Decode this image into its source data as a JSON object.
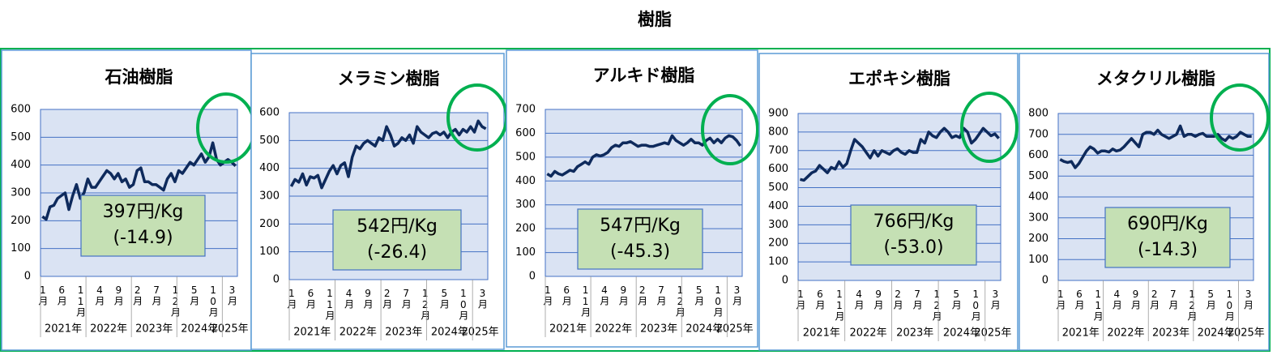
{
  "title": "樹脂",
  "chart_data": [
    {
      "type": "line",
      "title": "石油樹脂",
      "color": "#0e2a5c",
      "categories": [
        "1月",
        null,
        null,
        null,
        null,
        "6月",
        null,
        null,
        null,
        null,
        "11月",
        null,
        null,
        null,
        null,
        "4月",
        null,
        null,
        null,
        null,
        "9月",
        null,
        null,
        null,
        null,
        "2月",
        null,
        null,
        null,
        null,
        "7月",
        null,
        null,
        null,
        null,
        "12月",
        null,
        null,
        null,
        null,
        "5月",
        null,
        null,
        null,
        null,
        "10月",
        null,
        null,
        null,
        null,
        "3月",
        null
      ],
      "x_groups": [
        "2021年",
        "2022年",
        "2023年",
        "2024年",
        "2025年"
      ],
      "values": [
        215,
        205,
        250,
        255,
        280,
        290,
        300,
        240,
        290,
        330,
        280,
        300,
        350,
        320,
        320,
        340,
        360,
        380,
        370,
        350,
        370,
        340,
        350,
        320,
        330,
        380,
        390,
        340,
        340,
        330,
        330,
        320,
        310,
        350,
        370,
        340,
        380,
        370,
        390,
        410,
        400,
        420,
        440,
        410,
        430,
        480,
        420,
        400,
        410,
        420,
        410,
        397
      ],
      "ylim": [
        0,
        600
      ],
      "yticks": [
        0,
        100,
        200,
        300,
        400,
        500,
        600
      ],
      "grid": true,
      "annotation": [
        "397円/Kg",
        "(-14.9)"
      ]
    },
    {
      "type": "line",
      "title": "メラミン樹脂",
      "color": "#0e2a5c",
      "categories": [
        "1月",
        null,
        null,
        null,
        null,
        "6月",
        null,
        null,
        null,
        null,
        "11月",
        null,
        null,
        null,
        null,
        "4月",
        null,
        null,
        null,
        null,
        "9月",
        null,
        null,
        null,
        null,
        "2月",
        null,
        null,
        null,
        null,
        "7月",
        null,
        null,
        null,
        null,
        "12月",
        null,
        null,
        null,
        null,
        "5月",
        null,
        null,
        null,
        null,
        "10月",
        null,
        null,
        null,
        null,
        "3月",
        null
      ],
      "x_groups": [
        "2021年",
        "2022年",
        "2023年",
        "2024年",
        "2025年"
      ],
      "values": [
        335,
        360,
        350,
        380,
        340,
        370,
        365,
        375,
        330,
        360,
        390,
        410,
        380,
        410,
        420,
        370,
        440,
        480,
        470,
        490,
        500,
        490,
        480,
        510,
        500,
        550,
        520,
        480,
        490,
        510,
        500,
        520,
        490,
        550,
        530,
        520,
        510,
        525,
        530,
        520,
        530,
        510,
        530,
        540,
        520,
        540,
        530,
        550,
        530,
        570,
        550,
        542
      ],
      "ylim": [
        0,
        600
      ],
      "yticks": [
        0,
        100,
        200,
        300,
        400,
        500,
        600
      ],
      "grid": true,
      "annotation": [
        "542円/Kg",
        "(-26.4)"
      ]
    },
    {
      "type": "line",
      "title": "アルキド樹脂",
      "color": "#0e2a5c",
      "categories": [
        "1月",
        null,
        null,
        null,
        null,
        "6月",
        null,
        null,
        null,
        null,
        "11月",
        null,
        null,
        null,
        null,
        "4月",
        null,
        null,
        null,
        null,
        "9月",
        null,
        null,
        null,
        null,
        "2月",
        null,
        null,
        null,
        null,
        "7月",
        null,
        null,
        null,
        null,
        "12月",
        null,
        null,
        null,
        null,
        "5月",
        null,
        null,
        null,
        null,
        "10月",
        null,
        null,
        null,
        null,
        "3月",
        null
      ],
      "x_groups": [
        "2021年",
        "2022年",
        "2023年",
        "2024年",
        "2025年"
      ],
      "values": [
        430,
        420,
        440,
        430,
        425,
        435,
        445,
        440,
        460,
        470,
        480,
        470,
        500,
        510,
        505,
        510,
        520,
        540,
        550,
        545,
        560,
        560,
        565,
        555,
        545,
        550,
        550,
        545,
        545,
        550,
        555,
        560,
        555,
        590,
        570,
        560,
        550,
        560,
        575,
        560,
        560,
        550,
        570,
        580,
        560,
        575,
        560,
        580,
        590,
        585,
        570,
        547
      ],
      "ylim": [
        0,
        700
      ],
      "yticks": [
        0,
        100,
        200,
        300,
        400,
        500,
        600,
        700
      ],
      "grid": true,
      "annotation": [
        "547円/Kg",
        "(-45.3)"
      ]
    },
    {
      "type": "line",
      "title": "エポキシ樹脂",
      "color": "#0e2a5c",
      "categories": [
        "1月",
        null,
        null,
        null,
        null,
        "6月",
        null,
        null,
        null,
        null,
        "11月",
        null,
        null,
        null,
        null,
        "4月",
        null,
        null,
        null,
        null,
        "9月",
        null,
        null,
        null,
        null,
        "2月",
        null,
        null,
        null,
        null,
        "7月",
        null,
        null,
        null,
        null,
        "12月",
        null,
        null,
        null,
        null,
        "5月",
        null,
        null,
        null,
        null,
        "10月",
        null,
        null,
        null,
        null,
        "3月",
        null
      ],
      "x_groups": [
        "2021年",
        "2022年",
        "2023年",
        "2024年",
        "2025年"
      ],
      "values": [
        545,
        540,
        560,
        580,
        590,
        620,
        600,
        580,
        610,
        600,
        640,
        610,
        630,
        700,
        760,
        740,
        720,
        690,
        660,
        700,
        670,
        700,
        690,
        680,
        700,
        710,
        690,
        680,
        700,
        690,
        690,
        760,
        740,
        800,
        780,
        770,
        800,
        820,
        800,
        770,
        780,
        770,
        820,
        800,
        740,
        760,
        790,
        820,
        800,
        780,
        790,
        766
      ],
      "ylim": [
        0,
        900
      ],
      "yticks": [
        0,
        100,
        200,
        300,
        400,
        500,
        600,
        700,
        800,
        900
      ],
      "grid": true,
      "annotation": [
        "766円/Kg",
        "(-53.0)"
      ]
    },
    {
      "type": "line",
      "title": "メタクリル樹脂",
      "color": "#0e2a5c",
      "categories": [
        "1月",
        null,
        null,
        null,
        null,
        "6月",
        null,
        null,
        null,
        null,
        "11月",
        null,
        null,
        null,
        null,
        "4月",
        null,
        null,
        null,
        null,
        "9月",
        null,
        null,
        null,
        null,
        "2月",
        null,
        null,
        null,
        null,
        "7月",
        null,
        null,
        null,
        null,
        "12月",
        null,
        null,
        null,
        null,
        "5月",
        null,
        null,
        null,
        null,
        "10月",
        null,
        null,
        null,
        null,
        "3月",
        null
      ],
      "x_groups": [
        "2021年",
        "2022年",
        "2023年",
        "2024年",
        "2025年"
      ],
      "values": [
        580,
        570,
        565,
        570,
        540,
        560,
        590,
        620,
        640,
        630,
        610,
        620,
        620,
        615,
        630,
        620,
        625,
        640,
        660,
        680,
        660,
        640,
        700,
        710,
        710,
        700,
        720,
        700,
        690,
        680,
        690,
        700,
        740,
        690,
        700,
        700,
        690,
        700,
        705,
        690,
        690,
        690,
        700,
        680,
        670,
        690,
        680,
        690,
        710,
        700,
        690,
        690
      ],
      "ylim": [
        0,
        800
      ],
      "yticks": [
        0,
        100,
        200,
        300,
        400,
        500,
        600,
        700,
        800
      ],
      "grid": true,
      "annotation": [
        "690円/Kg",
        "(-14.3)"
      ]
    }
  ]
}
